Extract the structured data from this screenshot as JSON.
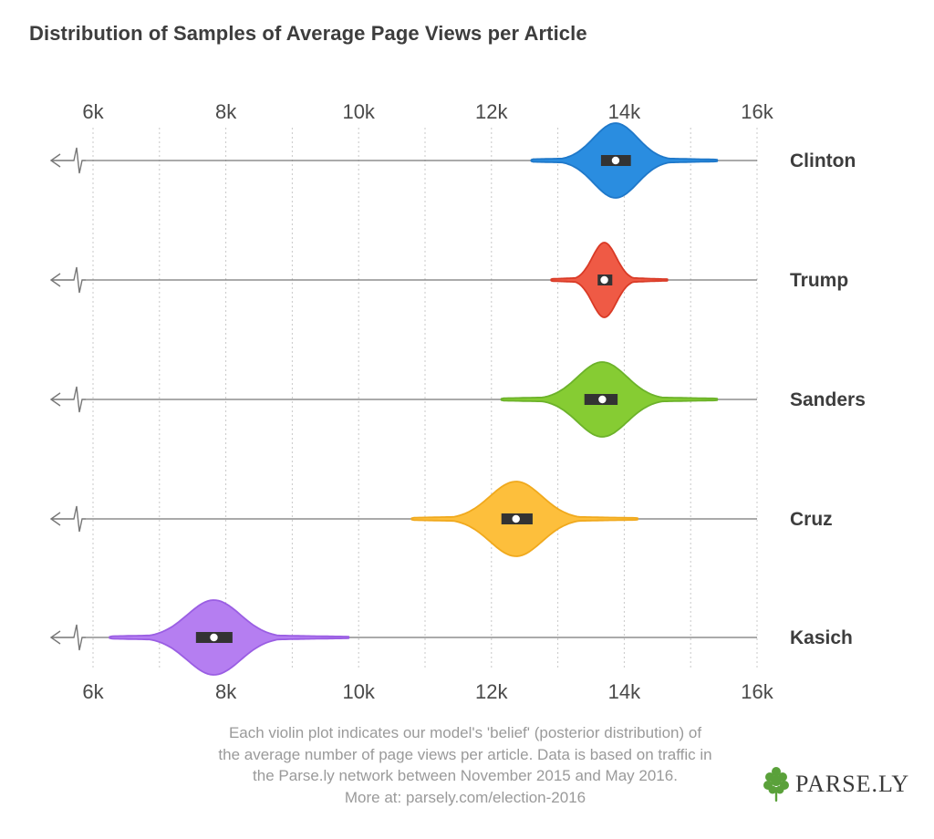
{
  "title": "Distribution of Samples of Average Page Views per Article",
  "chart_data": {
    "type": "violin",
    "x_ticks": [
      6000,
      8000,
      10000,
      12000,
      14000,
      16000
    ],
    "x_tick_labels": [
      "6k",
      "8k",
      "10k",
      "12k",
      "14k",
      "16k"
    ],
    "xlim": [
      6000,
      16000
    ],
    "minor_gridlines": [
      7000,
      9000,
      11000,
      13000,
      15000
    ],
    "axis_break_left": true,
    "series": [
      {
        "name": "Clinton",
        "color": "#2a8de0",
        "stroke": "#1f78c9",
        "min": 12600,
        "max": 15400,
        "q1": 13650,
        "median": 13870,
        "q3": 14100,
        "mode": 13870,
        "sigma": 330
      },
      {
        "name": "Trump",
        "color": "#ef5a45",
        "stroke": "#d93a26",
        "min": 12900,
        "max": 14650,
        "q1": 13600,
        "median": 13700,
        "q3": 13820,
        "mode": 13700,
        "sigma": 180
      },
      {
        "name": "Sanders",
        "color": "#86cc33",
        "stroke": "#6cb22a",
        "min": 12150,
        "max": 15400,
        "q1": 13400,
        "median": 13670,
        "q3": 13900,
        "mode": 13670,
        "sigma": 370
      },
      {
        "name": "Cruz",
        "color": "#fdbf3c",
        "stroke": "#f0a91d",
        "min": 10800,
        "max": 14200,
        "q1": 12150,
        "median": 12370,
        "q3": 12620,
        "mode": 12370,
        "sigma": 390
      },
      {
        "name": "Kasich",
        "color": "#b57ef1",
        "stroke": "#9a5ee3",
        "min": 6250,
        "max": 9850,
        "q1": 7550,
        "median": 7820,
        "q3": 8100,
        "mode": 7820,
        "sigma": 400
      }
    ]
  },
  "caption_lines": [
    "Each violin plot indicates our model's 'belief' (posterior distribution) of",
    "the average number of page views per article. Data is based on traffic in",
    "the Parse.ly network between November 2015 and May 2016.",
    "More at: parsely.com/election-2016"
  ],
  "brand": {
    "text": "PARSE.LY",
    "logo_icon": "parsely-leaf-icon",
    "logo_color": "#5aa13a"
  }
}
